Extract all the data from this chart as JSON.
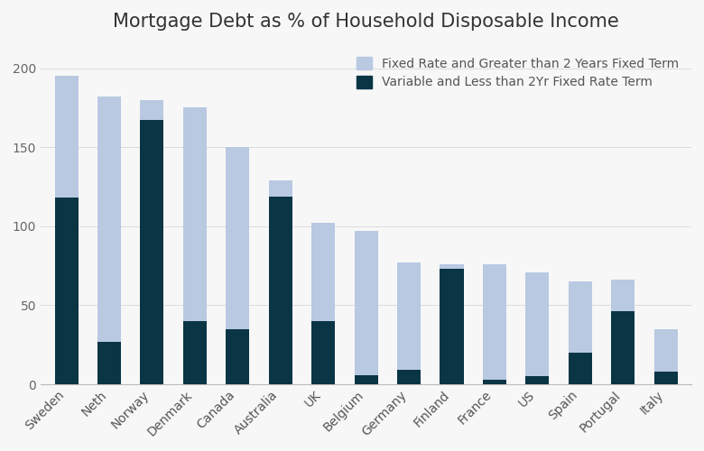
{
  "title": "Mortgage Debt as % of Household Disposable Income",
  "categories": [
    "Sweden",
    "Neth",
    "Norway",
    "Denmark",
    "Canada",
    "Australia",
    "UK",
    "Belgium",
    "Germany",
    "Finland",
    "France",
    "US",
    "Spain",
    "Portugal",
    "Italy"
  ],
  "variable_rate": [
    118,
    27,
    167,
    40,
    35,
    119,
    40,
    6,
    9,
    73,
    3,
    5,
    20,
    46,
    8
  ],
  "fixed_rate": [
    77,
    155,
    13,
    135,
    115,
    10,
    62,
    91,
    68,
    3,
    73,
    66,
    45,
    20,
    27
  ],
  "fixed_color": "#b8c9e1",
  "variable_color": "#093545",
  "background_color": "#f7f7f7",
  "legend_fixed": "Fixed Rate and Greater than 2 Years Fixed Term",
  "legend_variable": "Variable and Less than 2Yr Fixed Rate Term",
  "ylim": [
    0,
    215
  ],
  "yticks": [
    0,
    50,
    100,
    150,
    200
  ],
  "title_fontsize": 15,
  "tick_fontsize": 10,
  "legend_fontsize": 10
}
